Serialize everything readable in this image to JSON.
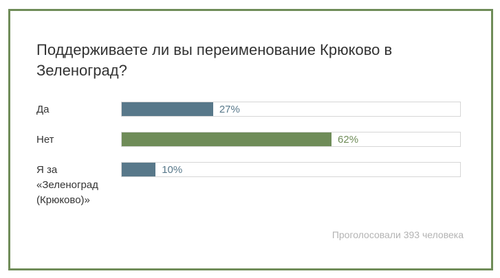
{
  "poll": {
    "question": "Поддерживаете ли вы переименование Крюково в Зеленоград?",
    "options": [
      {
        "label": "Да",
        "percent": 27,
        "percent_text": "27%",
        "color": "#58788a"
      },
      {
        "label": "Нет",
        "percent": 62,
        "percent_text": "62%",
        "color": "#6f8c58"
      },
      {
        "label": "Я за «Зеленоград (Крюково)»",
        "percent": 10,
        "percent_text": "10%",
        "color": "#58788a"
      }
    ],
    "footer": "Проголосовали 393 человека"
  },
  "colors": {
    "frame": "#6f8c58",
    "blue": "#58788a",
    "green": "#6f8c58",
    "muted": "#b3b3b3"
  }
}
